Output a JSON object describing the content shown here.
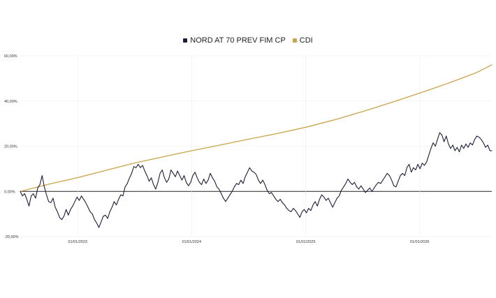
{
  "chart_data": {
    "type": "line",
    "title": "",
    "xlabel": "",
    "ylabel": "",
    "ylim": [
      -20,
      60
    ],
    "xlim": [
      "2022-07-01",
      "2026-08-20"
    ],
    "yticks": [
      60,
      40,
      20,
      0,
      -20
    ],
    "ytick_labels": [
      "60,00%",
      "40,00%",
      "20,00%",
      "0,00%",
      "-20,00%"
    ],
    "xticks": [
      "2023-01-01",
      "2024-01-01",
      "2025-01-01",
      "2026-01-01"
    ],
    "xtick_labels": [
      "01/01/2023",
      "01/01/2024",
      "01/01/2025",
      "01/01/2026"
    ],
    "legend_position": "top-center",
    "grid": true,
    "zero_line": true,
    "series": [
      {
        "name": "NORD AT 70 PREV FIM CP",
        "color": "#1c1d36",
        "points": [
          [
            "2022-07-01",
            0.0
          ],
          [
            "2022-07-08",
            -2.0
          ],
          [
            "2022-07-15",
            -1.0
          ],
          [
            "2022-07-22",
            -3.5
          ],
          [
            "2022-07-29",
            -6.5
          ],
          [
            "2022-08-05",
            -2.0
          ],
          [
            "2022-08-12",
            -1.0
          ],
          [
            "2022-08-19",
            -3.0
          ],
          [
            "2022-08-26",
            1.5
          ],
          [
            "2022-09-02",
            3.0
          ],
          [
            "2022-09-09",
            7.0
          ],
          [
            "2022-09-16",
            2.0
          ],
          [
            "2022-09-23",
            -1.5
          ],
          [
            "2022-09-30",
            -4.5
          ],
          [
            "2022-10-07",
            -5.0
          ],
          [
            "2022-10-14",
            -3.0
          ],
          [
            "2022-10-21",
            -7.0
          ],
          [
            "2022-10-28",
            -9.0
          ],
          [
            "2022-11-04",
            -11.5
          ],
          [
            "2022-11-11",
            -12.5
          ],
          [
            "2022-11-18",
            -11.0
          ],
          [
            "2022-11-25",
            -8.0
          ],
          [
            "2022-12-02",
            -10.5
          ],
          [
            "2022-12-09",
            -8.0
          ],
          [
            "2022-12-16",
            -6.5
          ],
          [
            "2022-12-23",
            -4.5
          ],
          [
            "2022-12-30",
            -2.5
          ],
          [
            "2023-01-06",
            -4.0
          ],
          [
            "2023-01-13",
            -2.0
          ],
          [
            "2023-01-20",
            -3.5
          ],
          [
            "2023-01-27",
            -5.0
          ],
          [
            "2023-02-03",
            -7.0
          ],
          [
            "2023-02-10",
            -9.0
          ],
          [
            "2023-02-17",
            -10.0
          ],
          [
            "2023-02-24",
            -12.5
          ],
          [
            "2023-03-03",
            -14.0
          ],
          [
            "2023-03-10",
            -16.0
          ],
          [
            "2023-03-17",
            -13.5
          ],
          [
            "2023-03-24",
            -11.0
          ],
          [
            "2023-03-31",
            -10.5
          ],
          [
            "2023-04-07",
            -12.0
          ],
          [
            "2023-04-14",
            -9.0
          ],
          [
            "2023-04-21",
            -7.0
          ],
          [
            "2023-04-28",
            -4.5
          ],
          [
            "2023-05-05",
            -6.0
          ],
          [
            "2023-05-12",
            -3.5
          ],
          [
            "2023-05-19",
            -1.5
          ],
          [
            "2023-05-26",
            -2.0
          ],
          [
            "2023-06-02",
            2.0
          ],
          [
            "2023-06-09",
            3.5
          ],
          [
            "2023-06-16",
            6.0
          ],
          [
            "2023-06-23",
            8.0
          ],
          [
            "2023-06-30",
            11.0
          ],
          [
            "2023-07-07",
            10.5
          ],
          [
            "2023-07-14",
            12.0
          ],
          [
            "2023-07-21",
            10.5
          ],
          [
            "2023-07-28",
            11.5
          ],
          [
            "2023-08-04",
            9.0
          ],
          [
            "2023-08-11",
            7.0
          ],
          [
            "2023-08-18",
            4.5
          ],
          [
            "2023-08-25",
            6.0
          ],
          [
            "2023-09-01",
            3.0
          ],
          [
            "2023-09-08",
            1.0
          ],
          [
            "2023-09-15",
            4.0
          ],
          [
            "2023-09-22",
            8.0
          ],
          [
            "2023-09-29",
            9.5
          ],
          [
            "2023-10-06",
            6.0
          ],
          [
            "2023-10-13",
            4.0
          ],
          [
            "2023-10-20",
            5.5
          ],
          [
            "2023-10-27",
            9.5
          ],
          [
            "2023-11-03",
            8.0
          ],
          [
            "2023-11-10",
            6.5
          ],
          [
            "2023-11-17",
            9.0
          ],
          [
            "2023-11-24",
            7.0
          ],
          [
            "2023-12-01",
            5.0
          ],
          [
            "2023-12-08",
            7.0
          ],
          [
            "2023-12-15",
            4.0
          ],
          [
            "2023-12-22",
            2.5
          ],
          [
            "2023-12-29",
            4.0
          ],
          [
            "2024-01-05",
            7.0
          ],
          [
            "2024-01-12",
            8.5
          ],
          [
            "2024-01-19",
            6.0
          ],
          [
            "2024-01-26",
            4.0
          ],
          [
            "2024-02-02",
            3.0
          ],
          [
            "2024-02-09",
            5.5
          ],
          [
            "2024-02-16",
            3.5
          ],
          [
            "2024-02-23",
            5.0
          ],
          [
            "2024-03-01",
            8.0
          ],
          [
            "2024-03-08",
            6.0
          ],
          [
            "2024-03-15",
            4.5
          ],
          [
            "2024-03-22",
            2.0
          ],
          [
            "2024-03-29",
            1.0
          ],
          [
            "2024-04-05",
            -1.0
          ],
          [
            "2024-04-12",
            -3.0
          ],
          [
            "2024-04-19",
            -4.5
          ],
          [
            "2024-04-26",
            -3.0
          ],
          [
            "2024-05-03",
            -1.5
          ],
          [
            "2024-05-10",
            0.0
          ],
          [
            "2024-05-17",
            2.0
          ],
          [
            "2024-05-24",
            3.5
          ],
          [
            "2024-05-31",
            3.0
          ],
          [
            "2024-06-07",
            5.0
          ],
          [
            "2024-06-14",
            3.5
          ],
          [
            "2024-06-21",
            6.5
          ],
          [
            "2024-06-28",
            8.5
          ],
          [
            "2024-07-05",
            10.5
          ],
          [
            "2024-07-12",
            9.0
          ],
          [
            "2024-07-19",
            8.5
          ],
          [
            "2024-07-26",
            7.5
          ],
          [
            "2024-08-02",
            5.0
          ],
          [
            "2024-08-09",
            3.5
          ],
          [
            "2024-08-16",
            5.0
          ],
          [
            "2024-08-23",
            3.0
          ],
          [
            "2024-08-30",
            0.5
          ],
          [
            "2024-09-06",
            -1.0
          ],
          [
            "2024-09-13",
            -0.5
          ],
          [
            "2024-09-20",
            -2.0
          ],
          [
            "2024-09-27",
            -3.5
          ],
          [
            "2024-10-04",
            -4.5
          ],
          [
            "2024-10-11",
            -3.5
          ],
          [
            "2024-10-18",
            -5.0
          ],
          [
            "2024-10-25",
            -6.0
          ],
          [
            "2024-11-01",
            -7.5
          ],
          [
            "2024-11-08",
            -8.5
          ],
          [
            "2024-11-15",
            -9.0
          ],
          [
            "2024-11-22",
            -7.5
          ],
          [
            "2024-11-29",
            -8.5
          ],
          [
            "2024-12-06",
            -10.0
          ],
          [
            "2024-12-13",
            -11.5
          ],
          [
            "2024-12-20",
            -9.0
          ],
          [
            "2024-12-27",
            -8.0
          ],
          [
            "2025-01-03",
            -9.5
          ],
          [
            "2025-01-10",
            -7.5
          ],
          [
            "2025-01-17",
            -8.5
          ],
          [
            "2025-01-24",
            -6.0
          ],
          [
            "2025-01-31",
            -4.5
          ],
          [
            "2025-02-07",
            -6.5
          ],
          [
            "2025-02-14",
            -3.5
          ],
          [
            "2025-02-21",
            -1.5
          ],
          [
            "2025-02-28",
            -2.5
          ],
          [
            "2025-03-07",
            -4.0
          ],
          [
            "2025-03-14",
            -3.0
          ],
          [
            "2025-03-21",
            -5.0
          ],
          [
            "2025-03-28",
            -7.0
          ],
          [
            "2025-04-04",
            -5.0
          ],
          [
            "2025-04-11",
            -3.0
          ],
          [
            "2025-04-18",
            -2.0
          ],
          [
            "2025-04-25",
            0.5
          ],
          [
            "2025-05-02",
            2.0
          ],
          [
            "2025-05-09",
            3.5
          ],
          [
            "2025-05-16",
            5.5
          ],
          [
            "2025-05-23",
            4.0
          ],
          [
            "2025-05-30",
            3.0
          ],
          [
            "2025-06-06",
            4.0
          ],
          [
            "2025-06-13",
            2.0
          ],
          [
            "2025-06-20",
            1.0
          ],
          [
            "2025-06-27",
            2.5
          ],
          [
            "2025-07-04",
            1.0
          ],
          [
            "2025-07-11",
            -0.5
          ],
          [
            "2025-07-18",
            0.5
          ],
          [
            "2025-07-25",
            1.5
          ],
          [
            "2025-08-01",
            0.0
          ],
          [
            "2025-08-08",
            1.5
          ],
          [
            "2025-08-15",
            3.0
          ],
          [
            "2025-08-22",
            4.0
          ],
          [
            "2025-08-29",
            3.5
          ],
          [
            "2025-09-05",
            5.0
          ],
          [
            "2025-09-12",
            6.5
          ],
          [
            "2025-09-19",
            8.0
          ],
          [
            "2025-09-26",
            7.0
          ],
          [
            "2025-10-03",
            5.0
          ],
          [
            "2025-10-10",
            2.5
          ],
          [
            "2025-10-17",
            2.0
          ],
          [
            "2025-10-24",
            4.5
          ],
          [
            "2025-10-31",
            7.0
          ],
          [
            "2025-11-07",
            8.0
          ],
          [
            "2025-11-14",
            7.0
          ],
          [
            "2025-11-21",
            10.5
          ],
          [
            "2025-11-28",
            12.0
          ],
          [
            "2025-12-05",
            8.5
          ],
          [
            "2025-12-12",
            10.5
          ],
          [
            "2025-12-19",
            9.5
          ],
          [
            "2025-12-26",
            12.0
          ],
          [
            "2026-01-02",
            10.0
          ],
          [
            "2026-01-09",
            12.5
          ],
          [
            "2026-01-16",
            11.5
          ],
          [
            "2026-01-23",
            13.0
          ],
          [
            "2026-01-30",
            16.0
          ],
          [
            "2026-02-06",
            19.0
          ],
          [
            "2026-02-13",
            21.5
          ],
          [
            "2026-02-20",
            20.0
          ],
          [
            "2026-02-27",
            23.0
          ],
          [
            "2026-03-06",
            26.0
          ],
          [
            "2026-03-13",
            25.0
          ],
          [
            "2026-03-20",
            22.0
          ],
          [
            "2026-03-27",
            24.5
          ],
          [
            "2026-04-03",
            21.0
          ],
          [
            "2026-04-10",
            19.0
          ],
          [
            "2026-04-17",
            20.5
          ],
          [
            "2026-04-24",
            18.0
          ],
          [
            "2026-05-01",
            19.5
          ],
          [
            "2026-05-08",
            17.5
          ],
          [
            "2026-05-15",
            20.5
          ],
          [
            "2026-05-22",
            19.0
          ],
          [
            "2026-05-29",
            21.0
          ],
          [
            "2026-06-05",
            19.5
          ],
          [
            "2026-06-12",
            21.5
          ],
          [
            "2026-06-19",
            20.5
          ],
          [
            "2026-06-26",
            23.0
          ],
          [
            "2026-07-03",
            24.5
          ],
          [
            "2026-07-10",
            24.0
          ],
          [
            "2026-07-17",
            23.0
          ],
          [
            "2026-07-24",
            21.5
          ],
          [
            "2026-07-31",
            19.5
          ],
          [
            "2026-08-07",
            20.5
          ],
          [
            "2026-08-14",
            18.0
          ],
          [
            "2026-08-20",
            18.0
          ]
        ]
      },
      {
        "name": "CDI",
        "color": "#c9a44a",
        "points": [
          [
            "2022-07-01",
            0.0
          ],
          [
            "2022-10-01",
            3.2
          ],
          [
            "2023-01-01",
            6.1
          ],
          [
            "2023-04-01",
            9.3
          ],
          [
            "2023-07-01",
            12.5
          ],
          [
            "2023-10-01",
            15.3
          ],
          [
            "2024-01-01",
            18.0
          ],
          [
            "2024-04-01",
            20.5
          ],
          [
            "2024-07-01",
            23.1
          ],
          [
            "2024-10-01",
            25.6
          ],
          [
            "2025-01-01",
            28.4
          ],
          [
            "2025-04-01",
            31.6
          ],
          [
            "2025-07-01",
            35.3
          ],
          [
            "2025-10-01",
            39.3
          ],
          [
            "2026-01-01",
            43.5
          ],
          [
            "2026-04-01",
            47.8
          ],
          [
            "2026-07-01",
            52.5
          ],
          [
            "2026-08-20",
            56.0
          ]
        ]
      }
    ]
  }
}
